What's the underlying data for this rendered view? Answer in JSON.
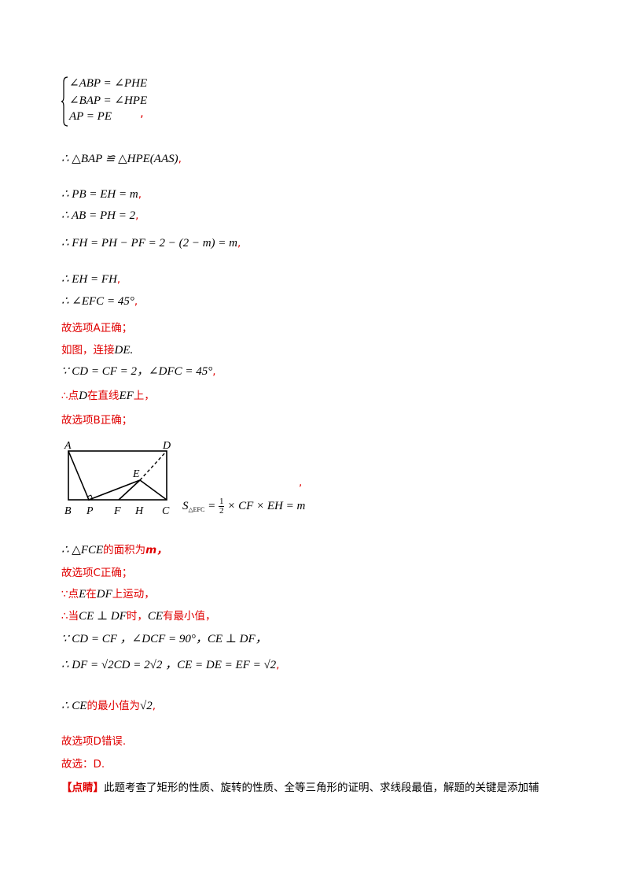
{
  "system": {
    "rows": [
      "∠ABP = ∠PHE",
      "∠BAP = ∠HPE",
      "AP = PE"
    ],
    "comma": ","
  },
  "lines": {
    "l1": "∴ △BAP ≌ △HPE(AAS)",
    "l2": "∴ PB = EH = m",
    "l3": "∴ AB = PH = 2",
    "l4": "∴ FH = PH − PF = 2 − (2 − m) = m",
    "l5": "∴ EH = FH",
    "l6": "∴ ∠EFC = 45°",
    "l7": "故选项A正确；",
    "l8_text": "如图，连接",
    "l8_math": "DE",
    "l8_end": ".",
    "l9": "∵ CD = CF = 2，∠DFC = 45°",
    "l10_a": "∴点",
    "l10_m1": "D",
    "l10_b": "在直线",
    "l10_m2": "EF",
    "l10_c": "上，",
    "l11": "故选项B正确；",
    "area_formula_end": "= ½ × CF × EH = m",
    "l12_math": "∴ △FCE",
    "l12_text": "的面积为",
    "l12_m": "m，",
    "l13": "故选项C正确；",
    "l14_a": "∵点",
    "l14_m1": "E",
    "l14_b": "在",
    "l14_m2": "DF",
    "l14_c": "上运动，",
    "l15_a": "∴当",
    "l15_m1": "CE ⊥ DF",
    "l15_b": "时，",
    "l15_m2": "CE",
    "l15_c": "有最小值，",
    "l16": "∵ CD = CF ，∠DCF = 90°，CE ⊥ DF，",
    "l17_a": "∴ DF = √2CD = 2√2 ，CE = DE = EF = √2",
    "l18_math": "∴ CE",
    "l18_text": "的最小值为",
    "l18_val": "√2",
    "l19": "故选项D错误.",
    "l20": "故选：D.",
    "l21_bracket": "【点睛】",
    "l21_text": "此题考查了矩形的性质、旋转的性质、全等三角形的证明、求线段最值，解题的关键是添加辅"
  },
  "figure": {
    "labels": {
      "A": "A",
      "D": "D",
      "E": "E",
      "B": "B",
      "P": "P",
      "F": "F",
      "H": "H",
      "C": "C"
    }
  },
  "comma_red": ","
}
